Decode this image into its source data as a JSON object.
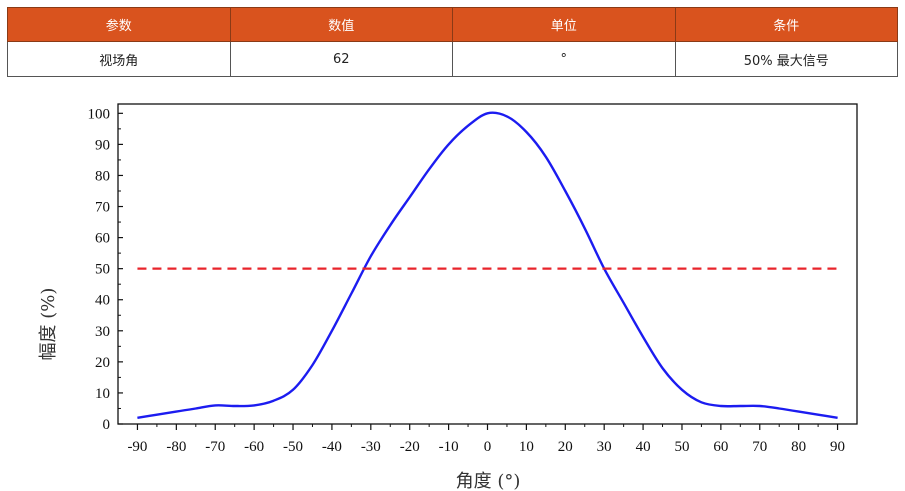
{
  "table": {
    "headers": [
      "参数",
      "数值",
      "单位",
      "条件"
    ],
    "row": [
      "视场角",
      "62",
      "°",
      "50% 最大信号"
    ]
  },
  "colors": {
    "header_bg": "#d9531e",
    "curve": "#1c1cf0",
    "threshold": "#e8242b"
  },
  "chart_data": {
    "type": "line",
    "xlabel": "角度 (°)",
    "ylabel": "幅度 (%)",
    "xlim": [
      -90,
      90
    ],
    "ylim": [
      0,
      100
    ],
    "xticks": [
      -90,
      -80,
      -70,
      -60,
      -50,
      -40,
      -30,
      -20,
      -10,
      0,
      10,
      20,
      30,
      40,
      50,
      60,
      70,
      80,
      90
    ],
    "yticks": [
      0,
      10,
      20,
      30,
      40,
      50,
      60,
      70,
      80,
      90,
      100
    ],
    "grid": false,
    "series": [
      {
        "style": "solid",
        "x": [
          -90,
          -85,
          -80,
          -75,
          -70,
          -65,
          -60,
          -55,
          -50,
          -45,
          -40,
          -35,
          -30,
          -25,
          -20,
          -15,
          -10,
          -5,
          0,
          5,
          10,
          15,
          20,
          25,
          30,
          35,
          40,
          45,
          50,
          55,
          60,
          65,
          70,
          75,
          80,
          85,
          90
        ],
        "y": [
          2,
          3,
          4,
          5,
          6,
          5.8,
          6,
          7.5,
          11,
          19,
          30,
          42,
          54,
          64,
          73,
          82,
          90,
          96,
          100,
          99,
          94,
          86,
          75,
          63,
          50,
          39,
          28,
          18,
          11,
          7,
          5.8,
          5.8,
          5.8,
          5,
          4,
          3,
          2
        ]
      },
      {
        "style": "dashed",
        "x": [
          -90,
          90
        ],
        "y": [
          50,
          50
        ]
      }
    ]
  }
}
